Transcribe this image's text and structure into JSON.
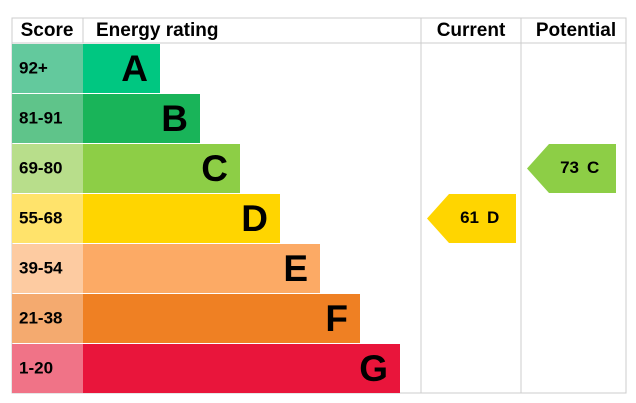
{
  "header": {
    "score": "Score",
    "rating": "Energy rating",
    "current": "Current",
    "potential": "Potential"
  },
  "bands": [
    {
      "score": "92+",
      "letter": "A",
      "color": "#00c781",
      "score_color": "#63c99d"
    },
    {
      "score": "81-91",
      "letter": "B",
      "color": "#19b459",
      "score_color": "#5fc48a"
    },
    {
      "score": "69-80",
      "letter": "C",
      "color": "#8dce46",
      "score_color": "#b8de8b"
    },
    {
      "score": "55-68",
      "letter": "D",
      "color": "#ffd500",
      "score_color": "#ffe36b"
    },
    {
      "score": "39-54",
      "letter": "E",
      "color": "#fcaa65",
      "score_color": "#fdcba1"
    },
    {
      "score": "21-38",
      "letter": "F",
      "color": "#ef8023",
      "score_color": "#f4aa6f"
    },
    {
      "score": "1-20",
      "letter": "G",
      "color": "#e9153b",
      "score_color": "#f07387"
    }
  ],
  "current": {
    "value": 61,
    "letter": "D"
  },
  "potential": {
    "value": 73,
    "letter": "C"
  }
}
